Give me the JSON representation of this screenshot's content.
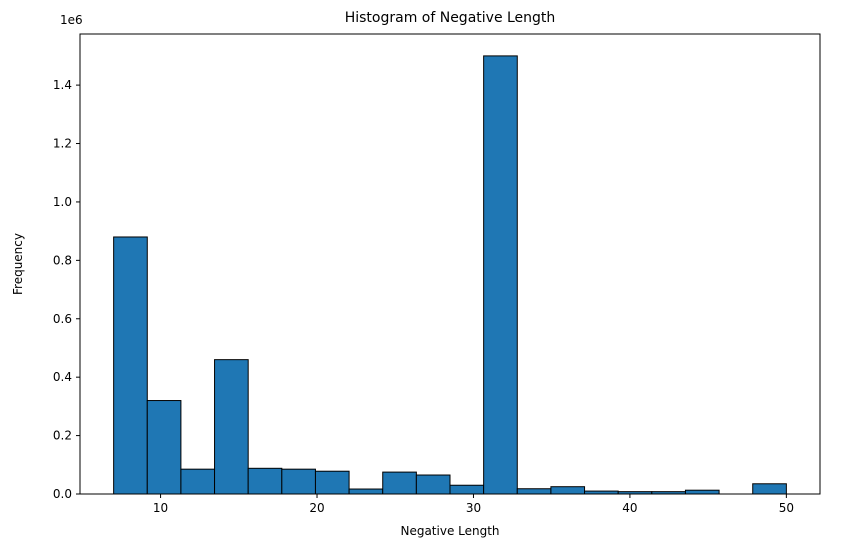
{
  "chart_data": {
    "type": "bar",
    "title": "Histogram of Negative Length",
    "xlabel": "Negative Length",
    "ylabel": "Frequency",
    "y_offset_label": "1e6",
    "xlim": [
      4.85,
      52.15
    ],
    "ylim": [
      0,
      1.575
    ],
    "bin_edges": [
      7.0,
      9.15,
      11.3,
      13.45,
      15.6,
      17.75,
      19.9,
      22.05,
      24.2,
      26.35,
      28.5,
      30.65,
      32.8,
      34.95,
      37.1,
      39.25,
      41.4,
      43.55,
      45.7,
      47.85,
      50.0
    ],
    "counts": [
      0.88,
      0.32,
      0.085,
      0.46,
      0.088,
      0.085,
      0.078,
      0.017,
      0.075,
      0.065,
      0.03,
      1.5,
      0.018,
      0.025,
      0.01,
      0.008,
      0.008,
      0.013,
      0.0,
      0.035
    ],
    "x_ticks": [
      10,
      20,
      30,
      40,
      50
    ],
    "y_ticks": [
      0.0,
      0.2,
      0.4,
      0.6,
      0.8,
      1.0,
      1.2,
      1.4
    ],
    "y_tick_labels": [
      "0.0",
      "0.2",
      "0.4",
      "0.6",
      "0.8",
      "1.0",
      "1.2",
      "1.4"
    ],
    "bar_color": "#1f77b4",
    "edge_color": "#000000",
    "grid": false,
    "legend": "none"
  }
}
